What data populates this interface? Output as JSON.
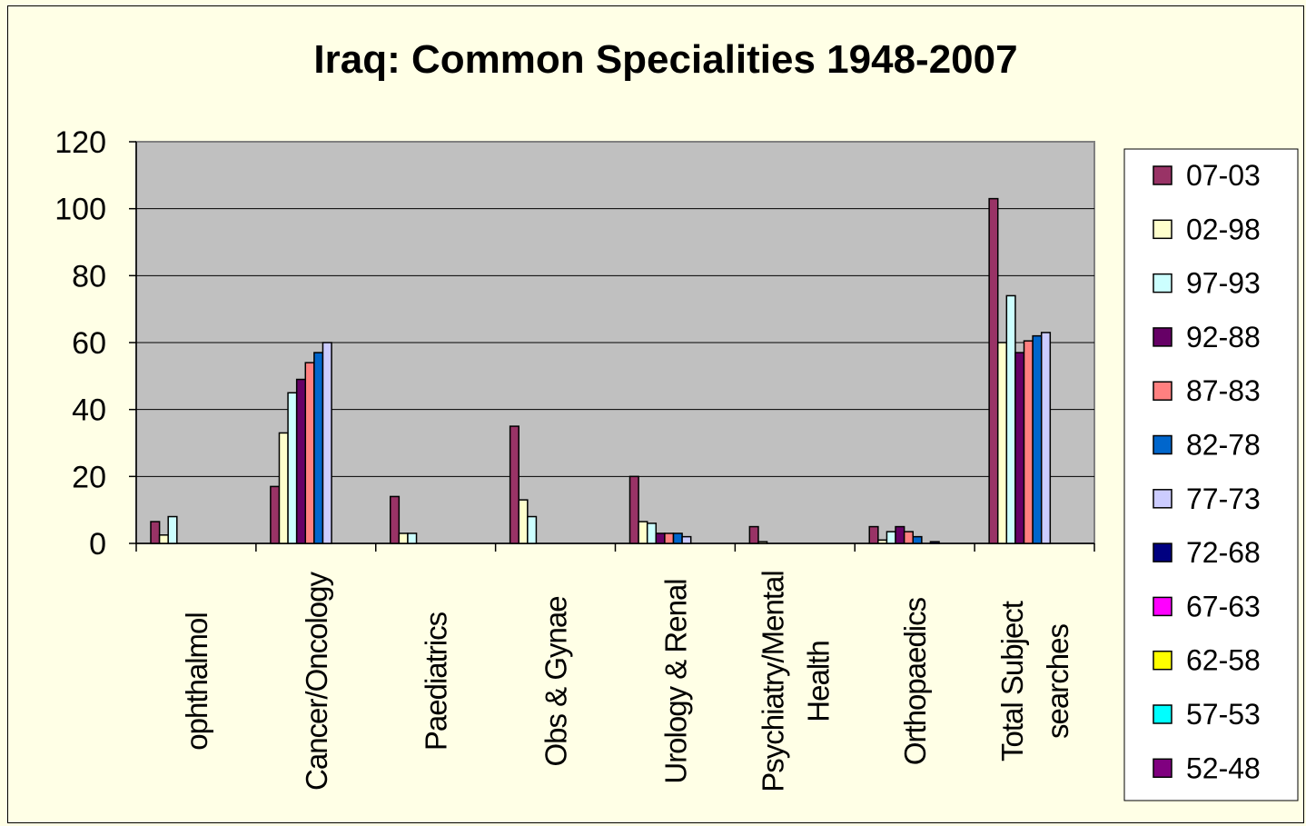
{
  "chart_data": {
    "type": "bar",
    "title": "Iraq: Common Specialities 1948-2007",
    "xlabel": "",
    "ylabel": "",
    "ylim": [
      0,
      120
    ],
    "yticks": [
      "0",
      "20",
      "40",
      "60",
      "80",
      "100",
      "120"
    ],
    "grid": true,
    "legend_position": "right",
    "categories": [
      [
        "ophthalmol"
      ],
      [
        "Cancer/Oncology"
      ],
      [
        "Paediatrics"
      ],
      [
        "Obs & Gynae"
      ],
      [
        "Urology & Renal"
      ],
      [
        "Psychiatry/Mental",
        "Health"
      ],
      [
        "Orthopaedics"
      ],
      [
        "Total Subject",
        "searches"
      ]
    ],
    "series": [
      {
        "name": "07-03",
        "color": "#993366",
        "values": [
          6.5,
          17,
          14,
          35,
          20,
          5,
          5,
          103
        ]
      },
      {
        "name": "02-98",
        "color": "#ffffcc",
        "values": [
          2.5,
          33,
          3,
          13,
          6.5,
          0.5,
          1,
          60
        ]
      },
      {
        "name": "97-93",
        "color": "#ccffff",
        "values": [
          8,
          45,
          3,
          8,
          6,
          0,
          3.5,
          74
        ]
      },
      {
        "name": "92-88",
        "color": "#660066",
        "values": [
          0,
          49,
          0,
          0,
          3,
          0,
          5,
          57
        ]
      },
      {
        "name": "87-83",
        "color": "#ff8080",
        "values": [
          0,
          54,
          0,
          0,
          3,
          0,
          3.5,
          60.5
        ]
      },
      {
        "name": "82-78",
        "color": "#0066cc",
        "values": [
          0,
          57,
          0,
          0,
          3,
          0,
          2,
          62
        ]
      },
      {
        "name": "77-73",
        "color": "#ccccff",
        "values": [
          0,
          60,
          0,
          0,
          2,
          0,
          0,
          63
        ]
      },
      {
        "name": "72-68",
        "color": "#000080",
        "values": [
          0,
          0,
          0,
          0,
          0,
          0,
          0.5,
          0
        ]
      },
      {
        "name": "67-63",
        "color": "#ff00ff",
        "values": [
          0,
          0,
          0,
          0,
          0,
          0,
          0,
          0
        ]
      },
      {
        "name": "62-58",
        "color": "#ffff00",
        "values": [
          0,
          0,
          0,
          0,
          0,
          0,
          0,
          0
        ]
      },
      {
        "name": "57-53",
        "color": "#00ffff",
        "values": [
          0,
          0,
          0,
          0,
          0,
          0,
          0,
          0
        ]
      },
      {
        "name": "52-48",
        "color": "#800080",
        "values": [
          0,
          0,
          0,
          0,
          0,
          0,
          0,
          0
        ]
      }
    ],
    "colors": {
      "plot_background": "#c0c0c0",
      "page_background": "#ffffe6"
    }
  }
}
